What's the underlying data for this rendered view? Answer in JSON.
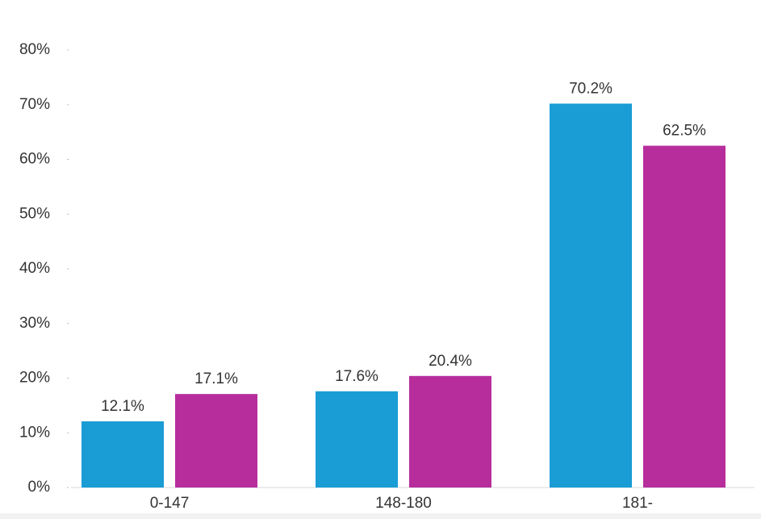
{
  "chart_data": {
    "type": "bar",
    "categories": [
      "0-147",
      "148-180",
      "181-"
    ],
    "series": [
      {
        "color": "#1a9cd5",
        "values": [
          12.1,
          17.6,
          70.2
        ],
        "value_labels": [
          "12.1%",
          "17.6%",
          "70.2%"
        ]
      },
      {
        "color": "#b72d9c",
        "values": [
          17.1,
          20.4,
          62.5
        ],
        "value_labels": [
          "17.1%",
          "20.4%",
          "62.5%"
        ]
      }
    ],
    "ylim": [
      0,
      80
    ],
    "yticks": [
      {
        "value": 0,
        "label": "0%"
      },
      {
        "value": 10,
        "label": "10%"
      },
      {
        "value": 20,
        "label": "20%"
      },
      {
        "value": 30,
        "label": "30%"
      },
      {
        "value": 40,
        "label": "40%"
      },
      {
        "value": 50,
        "label": "50%"
      },
      {
        "value": 60,
        "label": "60%"
      },
      {
        "value": 70,
        "label": "70%"
      },
      {
        "value": 80,
        "label": "80%"
      }
    ]
  }
}
